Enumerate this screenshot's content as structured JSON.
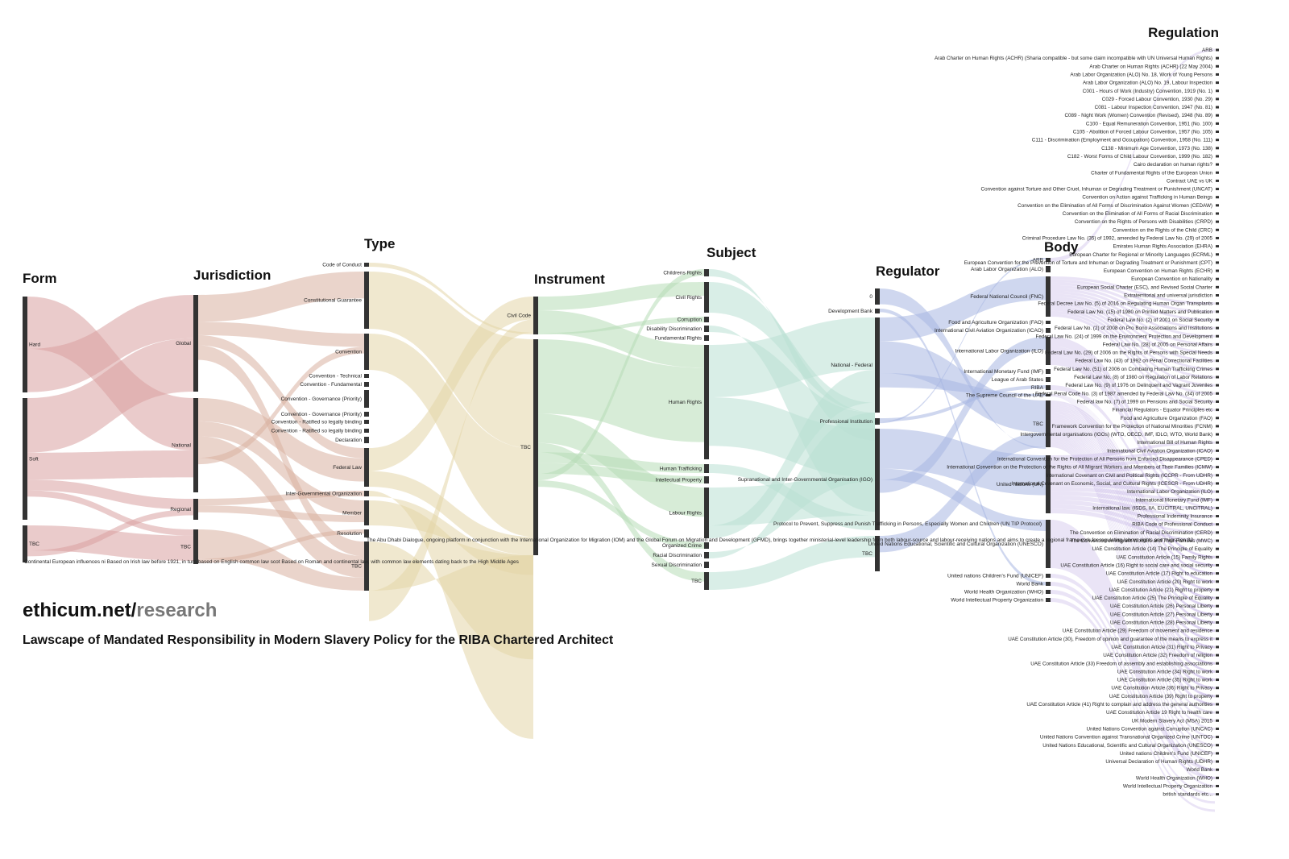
{
  "brand": {
    "domain": "ethicum.net/",
    "path": "research"
  },
  "subtitle": "Lawscape of Mandated Responsibility in Modern Slavery Policy for the RIBA Chartered Architect",
  "colors": {
    "form": "#d9a0a0",
    "jurisdiction": "#d8b0a0",
    "type": "#e3d6a8",
    "instrument": "#b6dcb6",
    "subject": "#b9e0d4",
    "regulator": "#a8b7e2",
    "body": "#c2b2e6",
    "node": "#333333"
  },
  "columns": [
    {
      "key": "form",
      "title": "Form",
      "nodes": [
        "Hard",
        "Soft",
        "TBC"
      ]
    },
    {
      "key": "jurisdiction",
      "title": "Jurisdiction",
      "nodes": [
        "Global",
        "National",
        "Regional",
        "TBC"
      ]
    },
    {
      "key": "type",
      "title": "Type",
      "nodes": [
        "Code of Conduct",
        "Constitutional Guarantee",
        "Convention",
        "Convention - Technical",
        "Convention - Fundamental",
        "Convention - Governance (Priority)",
        "Convention - Governance (Priority)",
        "Convention - Ratified so legally binding",
        "Convention - Ratified so legally binding",
        "Declaration",
        "Federal Law",
        "Inter-Governmental Organization",
        "Member",
        "Resolution",
        "TBC"
      ]
    },
    {
      "key": "instrument",
      "title": "Instrument",
      "nodes": [
        "Civil Code",
        "TBC"
      ]
    },
    {
      "key": "subject",
      "title": "Subject",
      "nodes": [
        "Childrens Rights",
        "Civil Rights",
        "Corruption",
        "Disability Discrimination",
        "Fundamental Rights",
        "Human Rights",
        "Human Trafficking",
        "Intellectual Property",
        "Labour Rights",
        "Organized Crime",
        "Racial Discrimination",
        "Sexual Discrimination",
        "TBC"
      ]
    },
    {
      "key": "regulator",
      "title": "Regulator",
      "nodes": [
        "0",
        "Development Bank",
        "National - Federal",
        "Professional Institution",
        "Supranational and Inter-Governmental Organisation (IGO)",
        "TBC"
      ]
    },
    {
      "key": "body",
      "title": "Body",
      "nodes": [
        "ARB",
        "Arab Labor Organization (ALO)",
        "Federal National Council (FNC)",
        "Food and Agriculture Organization (FAO)",
        "International Civil Aviation Organization (ICAO)",
        "International Labor Organization (ILO)",
        "International Monetary Fund (IMF)",
        "League of Arab States",
        "RIBA",
        "The Supreme Council of the UAE",
        "TBC",
        "United Nations (UN)",
        "United Nations Educational, Scientific and Cultural Organization (UNESCO)",
        "United nations Children's Fund (UNICEF)",
        "World Bank",
        "World Health Organization (WHO)",
        "World Intellectual Property Organization"
      ]
    }
  ],
  "regulation": {
    "title": "Regulation",
    "items": [
      "ARB",
      "Arab Charter on Human Rights (ACHR) (Sharia compatible - but some claim incompatible with UN Universal Human Rights)",
      "Arab Charter on Human Rights (ACHR) (22 May 2004)",
      "Arab Labor Organization (ALO) No. 18, Work of Young Persons",
      "Arab Labor Organization (ALO) No. 19, Labour Inspection",
      "C001 - Hours of Work (Industry) Convention, 1919 (No. 1)",
      "C029 - Forced Labour Convention, 1930 (No. 29)",
      "C081 - Labour Inspection Convention, 1947 (No. 81)",
      "C089 - Night Work (Women) Convention (Revised), 1948 (No. 89)",
      "C100 - Equal Remuneration Convention, 1951 (No. 100)",
      "C105 - Abolition of Forced Labour Convention, 1957 (No. 105)",
      "C111 - Discrimination (Employment and Occupation) Convention, 1958 (No. 111)",
      "C138 - Minimum Age Convention, 1973 (No. 138)",
      "C182 - Worst Forms of Child Labour Convention, 1999 (No. 182)",
      "Cairo declaration on human rights?",
      "Charter of Fundamental Rights of the European Union",
      "Contract UAE vs UK",
      "Convention against Torture and Other Cruel, Inhuman or Degrading Treatment or Punishment (UNCAT)",
      "Convention on Action against Trafficking in Human Beings",
      "Convention on the Elimination of All Forms of Discrimination Against Women (CEDAW)",
      "Convention on the Elimination of All Forms of Racial Discrimination",
      "Convention on the Rights of Persons with Disabilities (CRPD)",
      "Convention on the Rights of the Child (CRC)",
      "Criminal Procedure Law No. (35) of 1992, amended by Federal Law No. (29) of 2005",
      "Emirates Human Rights Association (EHRA)",
      "European Charter for Regional or Minority Languages (ECRML)",
      "European Convention for the Prevention of Torture and Inhuman or Degrading Treatment or Punishment (CPT)",
      "European Convention on Human Rights (ECHR)",
      "European Convention on Nationality",
      "European Social Charter (ESC), and Revised Social Charter",
      "Extraterritorial and universal jurisdiction",
      "Federal Decree Law No. (5) of 2016 on Regulating Human Organ Transplants",
      "Federal Law No. (15) of 1980 on Printed Matters and Publication",
      "Federal Law No. (2) of 2001 on Social Security",
      "Federal Law No. (2) of 2008 on Pro Bono Associations and Institutions",
      "Federal Law No. (24) of 1999 on the Environment Protection and Development",
      "Federal Law No. (28) of 2005 on Personal Affairs",
      "Federal Law No. (29) of 2006 on the Rights of Persons with Special Needs",
      "Federal Law No. (43) of 1992 on Penal Correctional Facilities",
      "Federal Law No. (51) of 2006 on Combating Human Trafficking Crimes",
      "Federal Law No. (8) of 1980 on Regulation of Labor Relations",
      "Federal Law No. (9) of 1976 on Delinquent and Vagrant Juveniles",
      "Federal Penal Code No. (3) of 1987 amended by Federal Law No. (34) of 2005",
      "Federal law No. (7) of 1999 on Pensions and Social Security",
      "Financial Regulators - Equator Principles etc",
      "Food and Agriculture Organization (FAO)",
      "Framework Convention for the Protection of National Minorities (FCNM)",
      "Intergovernmental organisations (IGOs) (WTO, OECD, IMF, IDLO, WTO, World Bank)",
      "International Bill of Human Rights",
      "International Civil Aviation Organization (ICAO)",
      "International Convention for the Protection of All Persons from Enforced Disappearance (CPED)",
      "International Convention on the Protection of the Rights of All Migrant Workers and Members of Their Families (ICMW)",
      "International Covenant on Civil and Political Rights (ICCPR - From UDHR)",
      "International Covenant on Economic, Social, and Cultural Rights (ICESCR - From UDHR)",
      "International Labor Organization (ILO)",
      "International Monetary Fund (IMF)",
      "International law, (ISDS, IIA, EUCITRAL, UNCITRAL)",
      "Professional Indemnity Insurance",
      "RIBA Code of Professional Conduct",
      "The Convention on Elimination of Racial Discrimination (CERD)",
      "The Convention on Migrant Workers and Their Families (MWC)",
      "UAE Constitution Article (14) The Principle of Equality",
      "UAE Constitution Article (15) Family Rights",
      "UAE Constitution Article (16) Right to social care and social security",
      "UAE Constitution Article (17) Right to education",
      "UAE Constitution Article (20) Right to work",
      "UAE Constitution Article (21) Right to property",
      "UAE Constitution Article (25) The Principle of Equality",
      "UAE Constitution Article (26) Personal Liberty",
      "UAE Constitution Article (27) Personal Liberty",
      "UAE Constitution Article (28) Personal Liberty",
      "UAE Constitution Article (29) Freedom of movement and residence",
      "UAE Constitution Article (30), Freedom of opinion and guarantee of the means to express it",
      "UAE Constitution Article (31) Right to Privacy",
      "UAE Constitution Article (32) Freedom of religion",
      "UAE Constitution Article (33) Freedom of assembly and establishing associations",
      "UAE Constitution Article (34) Right to work",
      "UAE Constitution Article (35) Right to work",
      "UAE Constitution Article (36) Right to Privacy",
      "UAE Constitution Article (39) Right to property",
      "UAE Constitution Article (41) Right to complain and address the general authorities",
      "UAE Constitution Article 19 Right to health care",
      "UK Modern Slavery Act (MSA) 2015",
      "United Nations Convention against Corruption (UNCAC)",
      "United Nations Convention against Transnational Organized Crime (UNTOC)",
      "United Nations Educational, Scientific and Cultural Organization (UNESCO)",
      "United nations Children's Fund (UNICEF)",
      "Universal Declaration of Human Rights (UDHR)",
      "World Bank",
      "World Health Organization (WHO)",
      "World Intellectual Property Organization",
      "british standards etc..."
    ]
  },
  "annotations": {
    "jurisdiction_note": "Continental European influences ni Based on Irish law before 1921, in turn based on English common law scot Based on Roman and continental law, with common law elements dating back to the High Middle Ages",
    "instrument_note": "The Abu Dhabi Dialogue, ongoing platform in conjunction with the International Organization for Migration (IOM) and the Global Forum on Migration and Development (GFMD), brings together ministerial-level leadership from both labour-source and labour-receiving nations and aims to create a regional framework for regulating labour rights and migration 32",
    "body_note": "Protocol to Prevent, Suppress and Punish Trafficking in Persons, Especially Women and Children (UN TIP Protocol)"
  }
}
